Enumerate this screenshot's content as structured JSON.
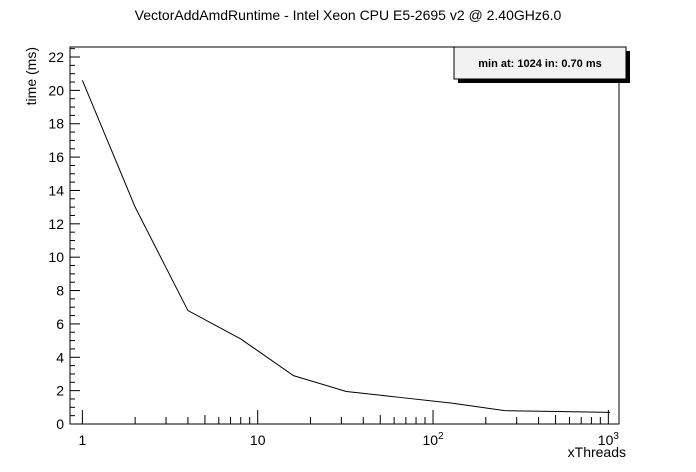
{
  "chart_data": {
    "type": "line",
    "title": "VectorAddAmdRuntime - Intel Xeon CPU E5-2695 v2 @ 2.40GHz6.0",
    "xlabel": "xThreads",
    "ylabel": "time (ms)",
    "xscale": "log",
    "xlim": [
      0.85,
      1150
    ],
    "ylim": [
      0,
      22.6
    ],
    "x": [
      1,
      2,
      4,
      8,
      16,
      32,
      64,
      128,
      256,
      512,
      1024
    ],
    "series": [
      {
        "values": [
          20.6,
          13.0,
          6.8,
          5.1,
          2.9,
          1.95,
          1.6,
          1.25,
          0.8,
          0.75,
          0.7
        ]
      }
    ],
    "y_ticks": [
      "0",
      "2",
      "4",
      "6",
      "8",
      "10",
      "12",
      "14",
      "16",
      "18",
      "20",
      "22"
    ],
    "x_ticks": [
      {
        "base": "1",
        "exp": ""
      },
      {
        "base": "10",
        "exp": ""
      },
      {
        "base": "10",
        "exp": "2"
      },
      {
        "base": "10",
        "exp": "3"
      }
    ],
    "annotation": "min at: 1024 in: 0.70 ms",
    "grid": false,
    "legend": "top-right"
  }
}
